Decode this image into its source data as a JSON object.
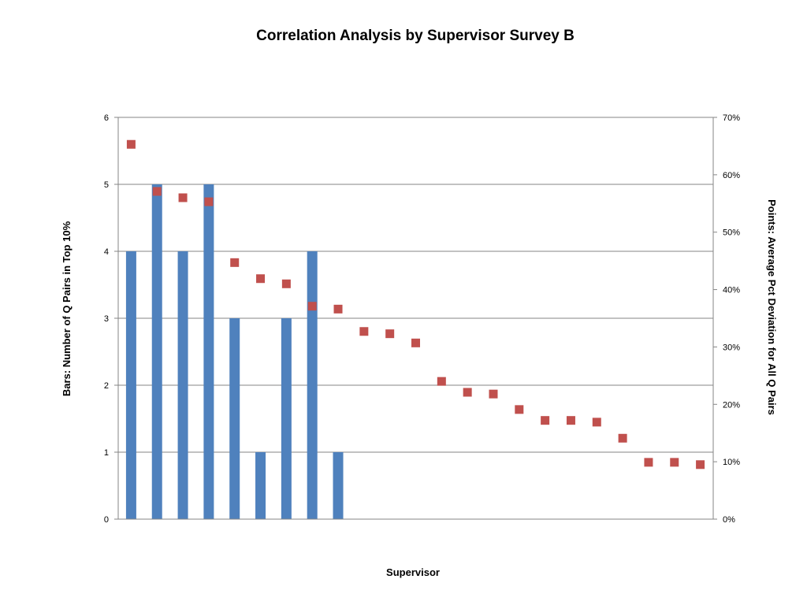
{
  "chart_data": {
    "type": "bar",
    "title": "Correlation Analysis by Supervisor Survey B",
    "xlabel": "Supervisor",
    "ylabel": "Bars: Number of Q Pairs in Top 10%",
    "y2label": "Points: Average Pct Deviation for All Q Pairs",
    "ylim": [
      0,
      6
    ],
    "y2lim": [
      0,
      70
    ],
    "yticks": [
      "0",
      "1",
      "2",
      "3",
      "4",
      "5",
      "6"
    ],
    "y2ticks": [
      "0%",
      "10%",
      "20%",
      "30%",
      "40%",
      "50%",
      "60%",
      "70%"
    ],
    "grid": true,
    "categories_count": 23,
    "series": [
      {
        "type": "bar",
        "axis": "left",
        "color": "#4F81BD",
        "values": [
          4,
          5,
          4,
          5,
          3,
          1,
          3,
          4,
          1,
          0,
          0,
          0,
          0,
          0,
          0,
          0,
          0,
          0,
          0,
          0,
          0,
          0,
          0
        ]
      },
      {
        "type": "scatter",
        "axis": "right",
        "color": "#C0504D",
        "values": [
          65.3,
          57.1,
          56.0,
          55.3,
          44.7,
          41.9,
          41.0,
          37.1,
          36.6,
          32.7,
          32.3,
          30.7,
          24.0,
          22.1,
          21.8,
          19.1,
          17.2,
          17.2,
          16.9,
          14.1,
          9.9,
          9.9,
          9.5
        ]
      }
    ]
  }
}
